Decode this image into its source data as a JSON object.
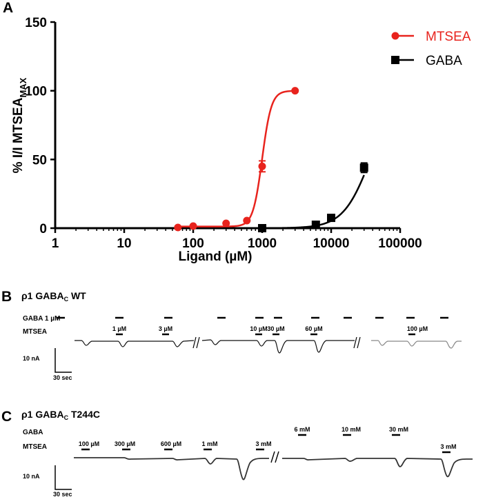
{
  "panel_a": {
    "letter": "A",
    "chart_data": {
      "type": "scatter",
      "xlabel": "Ligand (µM)",
      "ylabel": "% I/I MTSEA",
      "ylabel_subscript": "MAX",
      "xscale": "log",
      "xlim": [
        1,
        100000
      ],
      "ylim": [
        0,
        150
      ],
      "xticks": [
        "1",
        "10",
        "100",
        "1000",
        "10000",
        "100000"
      ],
      "yticks": [
        "0",
        "50",
        "100",
        "150"
      ],
      "legend_position": "top-right",
      "series": [
        {
          "name": "MTSEA",
          "color": "#e8231d",
          "marker": "circle",
          "x": [
            60,
            100,
            300,
            600,
            1000,
            3000
          ],
          "y": [
            0.5,
            1.5,
            3.5,
            5.5,
            45,
            100
          ],
          "err": [
            0,
            0,
            0,
            0,
            4,
            0
          ],
          "fit": {
            "bottom": 1.2,
            "top": 100,
            "ec50": 1000,
            "hill": 6.5
          }
        },
        {
          "name": "GABA",
          "color": "#000000",
          "marker": "square",
          "x": [
            1000,
            6000,
            10000,
            30000
          ],
          "y": [
            0,
            2.5,
            7.5,
            44
          ],
          "err": [
            0,
            0,
            0,
            3.5
          ],
          "fit": {
            "bottom": 0,
            "top": 100,
            "ec50": 37000,
            "hill": 2.2
          }
        }
      ]
    }
  },
  "panel_b": {
    "letter": "B",
    "title_prefix": "ρ1 GABA",
    "title_sub": "C",
    "title_suffix": " WT",
    "row1_label": "GABA 1 µM",
    "row2_label": "MTSEA",
    "mtsea_labels": [
      "1 µM",
      "3 µM",
      "10 µM",
      "30 µM",
      "60 µM",
      "100 µM"
    ],
    "scale_current": "10 nA",
    "scale_time": "30 sec"
  },
  "panel_c": {
    "letter": "C",
    "title_prefix": "ρ1 GABA",
    "title_sub": "C",
    "title_suffix": " T244C",
    "row1_label": "GABA",
    "row2_label": "MTSEA",
    "gaba_labels": [
      "6 mM",
      "10 mM",
      "30 mM"
    ],
    "mtsea_labels": [
      "100 µM",
      "300 µM",
      "600 µM",
      "1 mM",
      "3 mM",
      "3 mM"
    ],
    "scale_current": "10 nA",
    "scale_time": "30 sec"
  }
}
